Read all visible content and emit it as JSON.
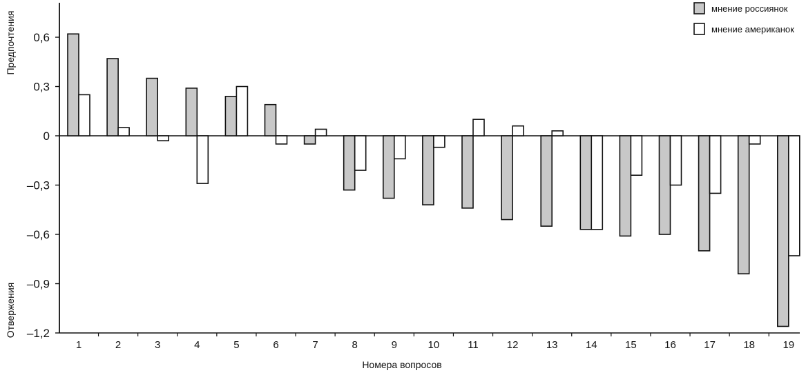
{
  "chart_data": {
    "type": "bar",
    "title": "",
    "xlabel": "Номера вопросов",
    "ylabel_top": "Предпочтения",
    "ylabel_bottom": "Отвержения",
    "ylim": [
      -1.2,
      0.8
    ],
    "yticks": [
      0.6,
      0.3,
      0,
      -0.3,
      -0.6,
      -0.9,
      -1.2
    ],
    "ytick_labels": [
      "0,6",
      "0,3",
      "0",
      "–0,3",
      "–0,6",
      "–0,9",
      "–1,2"
    ],
    "categories": [
      "1",
      "2",
      "3",
      "4",
      "5",
      "6",
      "7",
      "8",
      "9",
      "10",
      "11",
      "12",
      "13",
      "14",
      "15",
      "16",
      "17",
      "18",
      "19"
    ],
    "series": [
      {
        "name": "мнение россиянок",
        "fill": "#c8c8c8",
        "values": [
          0.62,
          0.47,
          0.35,
          0.29,
          0.24,
          0.19,
          -0.05,
          -0.33,
          -0.38,
          -0.42,
          -0.44,
          -0.51,
          -0.55,
          -0.57,
          -0.61,
          -0.6,
          -0.7,
          -0.84,
          -1.16
        ]
      },
      {
        "name": "мнение американок",
        "fill": "#ffffff",
        "values": [
          0.25,
          0.05,
          -0.03,
          -0.29,
          0.3,
          -0.05,
          0.04,
          -0.21,
          -0.14,
          -0.07,
          0.1,
          0.06,
          0.03,
          -0.57,
          -0.24,
          -0.3,
          -0.35,
          -0.05,
          -0.73
        ]
      }
    ],
    "legend_position": "top-right",
    "grid": false
  }
}
